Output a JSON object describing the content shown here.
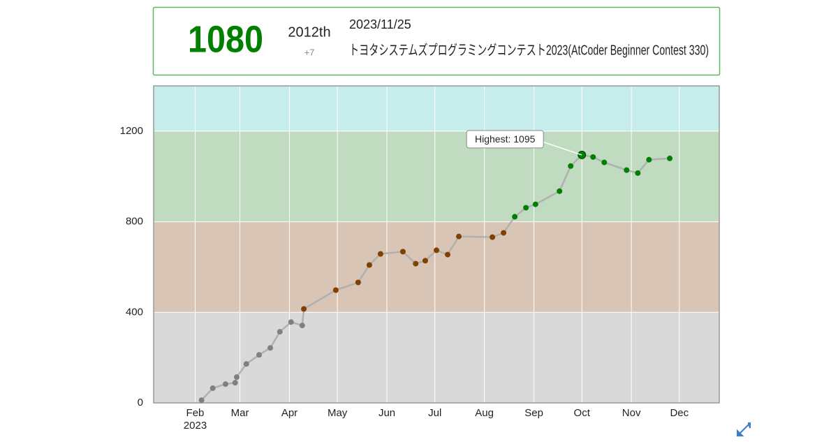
{
  "header": {
    "rating": "1080",
    "rank": "2012th",
    "diff": "+7",
    "date": "2023/11/25",
    "contest": "トヨタシステムズプログラミングコンテスト2023(AtCoder Beginner Contest 330)"
  },
  "chart_data": {
    "type": "line",
    "x": [
      36,
      43,
      51,
      57,
      58,
      64,
      72,
      79,
      85,
      92,
      99,
      100,
      120,
      134,
      141,
      148,
      162,
      170,
      176,
      183,
      190,
      197,
      218,
      225,
      232,
      239,
      245,
      260,
      267,
      274,
      281,
      288,
      302,
      309,
      316,
      329
    ],
    "values": [
      12,
      65,
      83,
      89,
      114,
      172,
      212,
      243,
      314,
      357,
      342,
      415,
      498,
      532,
      609,
      658,
      668,
      615,
      628,
      674,
      655,
      735,
      732,
      751,
      822,
      862,
      877,
      935,
      1046,
      1095,
      1086,
      1062,
      1028,
      1015,
      1074,
      1080
    ],
    "xlim": [
      6,
      360
    ],
    "xticks": [
      {
        "value": 32,
        "label": "Feb"
      },
      {
        "value": 60,
        "label": "Mar"
      },
      {
        "value": 91,
        "label": "Apr"
      },
      {
        "value": 121,
        "label": "May"
      },
      {
        "value": 152,
        "label": "Jun"
      },
      {
        "value": 182,
        "label": "Jul"
      },
      {
        "value": 213,
        "label": "Aug"
      },
      {
        "value": 244,
        "label": "Sep"
      },
      {
        "value": 274,
        "label": "Oct"
      },
      {
        "value": 305,
        "label": "Nov"
      },
      {
        "value": 335,
        "label": "Dec"
      }
    ],
    "year_label": "2023",
    "ylim": [
      0,
      1400
    ],
    "yticks": [
      0,
      400,
      800,
      1200
    ],
    "grid": true,
    "band_colors": [
      "#d9d9d9",
      "#d9c5b6",
      "#c0dbc0",
      "#c6ecec"
    ],
    "point_colors": [
      "#808080",
      "#804000",
      "#008000",
      "#00c0c0"
    ],
    "line_color": "#b0b0b0",
    "annotation": "Highest: 1095"
  }
}
